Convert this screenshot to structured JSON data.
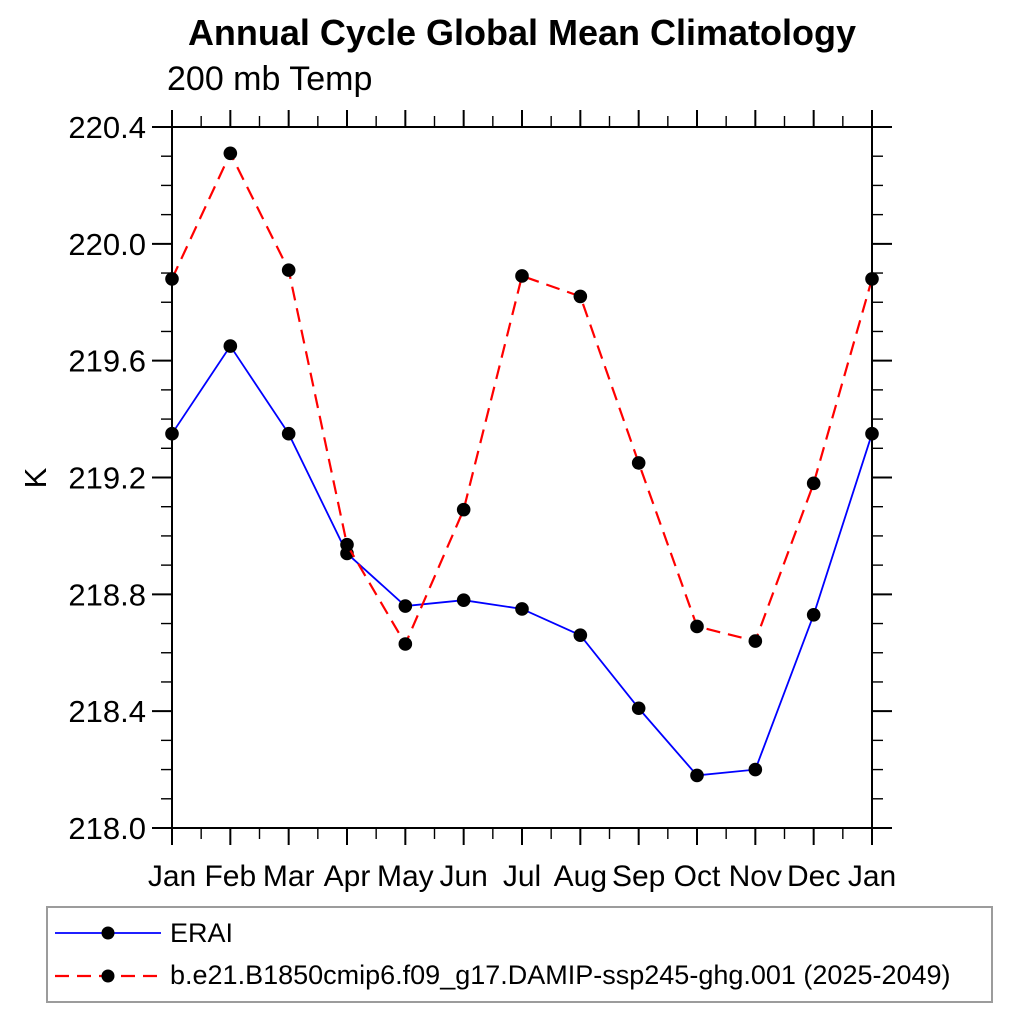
{
  "chart_data": {
    "type": "line",
    "title": "Annual Cycle Global Mean Climatology",
    "subtitle": "200 mb Temp",
    "ylabel": "K",
    "x_categories": [
      "Jan",
      "Feb",
      "Mar",
      "Apr",
      "May",
      "Jun",
      "Jul",
      "Aug",
      "Sep",
      "Oct",
      "Nov",
      "Dec",
      "Jan"
    ],
    "ylim": [
      218.0,
      220.4
    ],
    "ytick_labels": [
      "218.0",
      "218.4",
      "218.8",
      "219.2",
      "219.6",
      "220.0",
      "220.4"
    ],
    "ytick_minor_step": 0.1,
    "xtick_minor": "half-month",
    "grid": false,
    "legend_position": "bottom-left-box",
    "frame_color": "#000000",
    "series": [
      {
        "name": "ERAI",
        "line_color": "#0000ff",
        "line_style": "solid",
        "marker": "filled-circle",
        "marker_color": "#000000",
        "values": [
          219.35,
          219.65,
          219.35,
          218.94,
          218.76,
          218.78,
          218.75,
          218.66,
          218.41,
          218.18,
          218.2,
          218.73,
          219.35
        ]
      },
      {
        "name": "b.e21.B1850cmip6.f09_g17.DAMIP-ssp245-ghg.001 (2025-2049)",
        "line_color": "#ff0000",
        "line_style": "dashed",
        "marker": "filled-circle",
        "marker_color": "#000000",
        "values": [
          219.88,
          220.31,
          219.91,
          218.97,
          218.63,
          219.09,
          219.89,
          219.82,
          219.25,
          218.69,
          218.64,
          219.18,
          219.88
        ]
      }
    ]
  }
}
